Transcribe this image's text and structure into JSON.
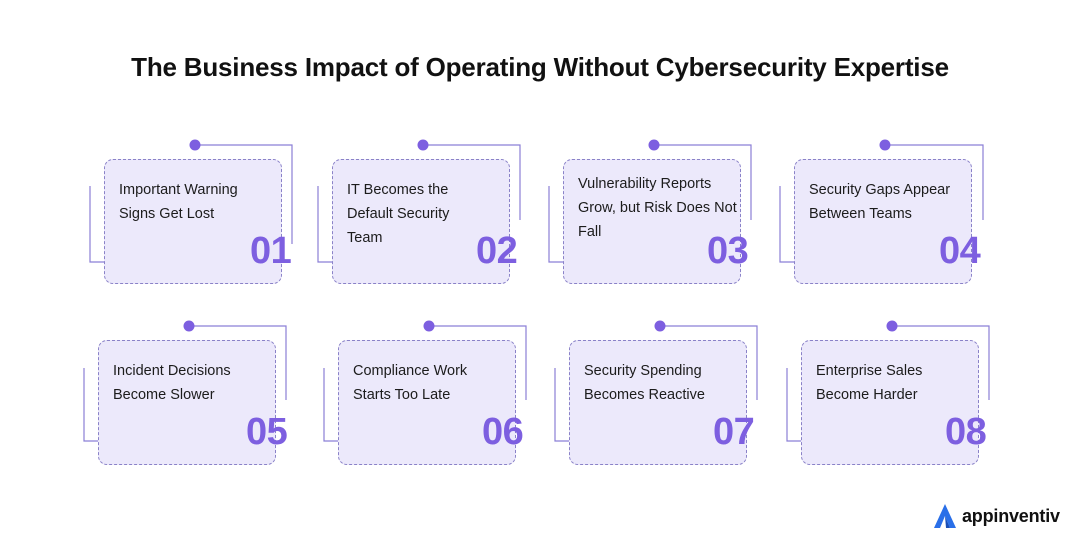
{
  "title": "The Business Impact of Operating Without Cybersecurity Expertise",
  "accent_color": "#7d5fe0",
  "line_color": "#8b7fd6",
  "card_fill": "#ece9fb",
  "cards": [
    {
      "number": "01",
      "text": "Important Warning Signs Get Lost"
    },
    {
      "number": "02",
      "text": "IT Becomes the Default Security Team"
    },
    {
      "number": "03",
      "text": "Vulnerability Reports Grow, but Risk Does Not Fall"
    },
    {
      "number": "04",
      "text": "Security Gaps Appear Between Teams"
    },
    {
      "number": "05",
      "text": "Incident Decisions Become Slower"
    },
    {
      "number": "06",
      "text": "Compliance Work Starts Too Late"
    },
    {
      "number": "07",
      "text": "Security Spending Becomes Reactive"
    },
    {
      "number": "08",
      "text": "Enterprise Sales Become Harder"
    }
  ],
  "brand": {
    "name": "appinventiv",
    "icon": "appinventiv-logo"
  }
}
